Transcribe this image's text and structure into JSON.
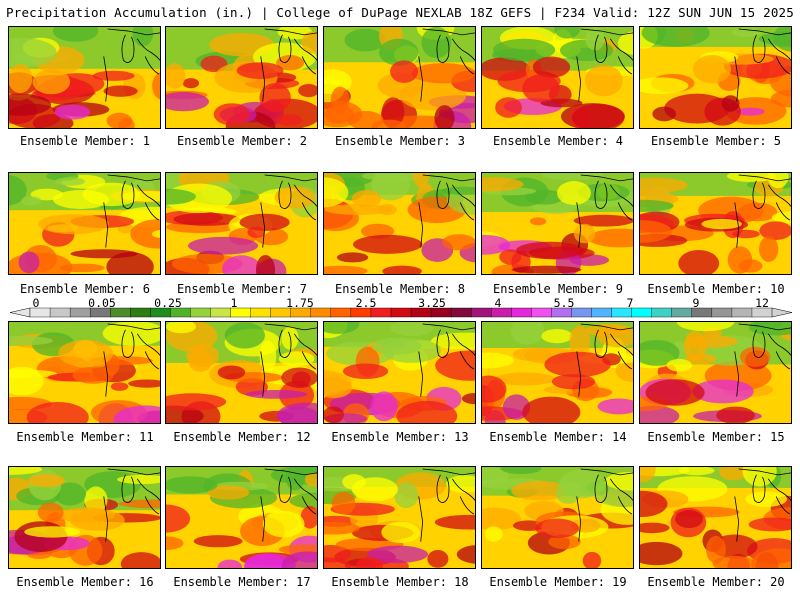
{
  "header": {
    "title": "Precipitation Accumulation (in.) | College of DuPage NEXLAB",
    "valid": "18Z GEFS | F234 Valid: 12Z SUN JUN 15 2025"
  },
  "members": [
    {
      "label": "Ensemble Member: 1",
      "seed": 11
    },
    {
      "label": "Ensemble Member: 2",
      "seed": 23
    },
    {
      "label": "Ensemble Member: 3",
      "seed": 37
    },
    {
      "label": "Ensemble Member: 4",
      "seed": 41
    },
    {
      "label": "Ensemble Member: 5",
      "seed": 53
    },
    {
      "label": "Ensemble Member: 6",
      "seed": 67
    },
    {
      "label": "Ensemble Member: 7",
      "seed": 71
    },
    {
      "label": "Ensemble Member: 8",
      "seed": 83
    },
    {
      "label": "Ensemble Member: 9",
      "seed": 97
    },
    {
      "label": "Ensemble Member: 10",
      "seed": 101
    },
    {
      "label": "Ensemble Member: 11",
      "seed": 113
    },
    {
      "label": "Ensemble Member: 12",
      "seed": 127
    },
    {
      "label": "Ensemble Member: 13",
      "seed": 131
    },
    {
      "label": "Ensemble Member: 14",
      "seed": 149
    },
    {
      "label": "Ensemble Member: 15",
      "seed": 151
    },
    {
      "label": "Ensemble Member: 16",
      "seed": 163
    },
    {
      "label": "Ensemble Member: 17",
      "seed": 173
    },
    {
      "label": "Ensemble Member: 18",
      "seed": 181
    },
    {
      "label": "Ensemble Member: 19",
      "seed": 191
    },
    {
      "label": "Ensemble Member: 20",
      "seed": 199
    }
  ],
  "colorbar": {
    "ticks": [
      "0",
      "0.05",
      "0.25",
      "1",
      "1.75",
      "2.5",
      "3.25",
      "4",
      "5.5",
      "7",
      "9",
      "12"
    ],
    "colors": [
      "#e6e6e6",
      "#c8c8c8",
      "#a0a0a0",
      "#787878",
      "#4c8c2a",
      "#2e7d12",
      "#1e8c1e",
      "#50b42a",
      "#96d23c",
      "#c8e646",
      "#ffff00",
      "#ffe100",
      "#ffc800",
      "#ffaa00",
      "#ff8c00",
      "#ff6400",
      "#ff3c00",
      "#f01e1e",
      "#d20a14",
      "#b40014",
      "#96001e",
      "#820a3c",
      "#a0147a",
      "#c81eaa",
      "#e628dc",
      "#f050f0",
      "#b46ef0",
      "#7896f0",
      "#50b4ff",
      "#28e6ff",
      "#00ffff",
      "#3cd2c8",
      "#64aaa0",
      "#787878",
      "#969696",
      "#b4b4b4",
      "#d2d2d2"
    ]
  }
}
